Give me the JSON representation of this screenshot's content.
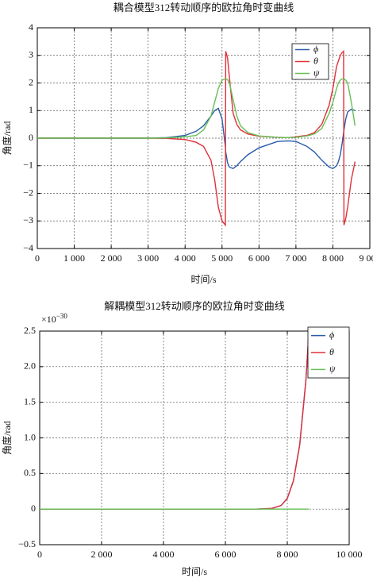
{
  "chart_data": [
    {
      "type": "line",
      "title": "耦合模型312转动顺序的欧拉角时变曲线",
      "x_label": "时间/s",
      "y_label": "角度/rad",
      "x": [
        0,
        1000,
        2000,
        3000,
        3500,
        4000,
        4300,
        4500,
        4700,
        4800,
        4900,
        5000,
        5090,
        5100,
        5150,
        5200,
        5300,
        5400,
        5500,
        5700,
        6000,
        6500,
        6800,
        7000,
        7300,
        7500,
        7700,
        7900,
        8000,
        8100,
        8150,
        8200,
        8250,
        8290,
        8300,
        8350,
        8400,
        8500,
        8600
      ],
      "series": [
        {
          "name": "ϕ",
          "color": "#2a5caa",
          "values": [
            0,
            0,
            0,
            0,
            0.02,
            0.1,
            0.25,
            0.45,
            0.8,
            1.0,
            1.08,
            0.7,
            -0.3,
            -0.5,
            -0.9,
            -1.05,
            -1.1,
            -1.0,
            -0.85,
            -0.6,
            -0.35,
            -0.12,
            -0.1,
            -0.12,
            -0.3,
            -0.5,
            -0.8,
            -1.05,
            -1.1,
            -1.0,
            -0.85,
            -0.6,
            -0.2,
            0.2,
            0.3,
            0.7,
            0.95,
            1.05,
            1.0
          ]
        },
        {
          "name": "θ",
          "color": "#e0303a",
          "values": [
            0,
            0,
            0,
            0,
            -0.01,
            -0.05,
            -0.15,
            -0.3,
            -0.8,
            -1.5,
            -2.5,
            -3.0,
            -3.15,
            3.15,
            2.9,
            2.2,
            0.9,
            0.5,
            0.3,
            0.15,
            0.07,
            0.03,
            0.02,
            0.05,
            0.1,
            0.2,
            0.5,
            1.2,
            1.8,
            2.6,
            2.8,
            3.0,
            3.1,
            3.15,
            -3.15,
            -2.9,
            -2.5,
            -1.5,
            -0.85
          ]
        },
        {
          "name": "ψ",
          "color": "#66c055",
          "values": [
            0,
            0,
            0,
            0,
            0.01,
            0.05,
            0.1,
            0.3,
            0.8,
            1.3,
            1.8,
            2.1,
            2.15,
            2.15,
            2.12,
            2.0,
            1.4,
            0.8,
            0.45,
            0.2,
            0.08,
            0.03,
            0.02,
            0.03,
            0.08,
            0.15,
            0.35,
            0.9,
            1.3,
            1.8,
            2.0,
            2.1,
            2.15,
            2.15,
            2.15,
            2.1,
            2.0,
            1.3,
            0.45
          ]
        }
      ],
      "xlim": [
        0,
        9000
      ],
      "ylim": [
        -4,
        4
      ],
      "xticks": [
        0,
        {
          "value": 1000,
          "label": "1 000"
        },
        {
          "value": 2000,
          "label": "2 000"
        },
        {
          "value": 3000,
          "label": "3 000"
        },
        {
          "value": 4000,
          "label": "4 000"
        },
        {
          "value": 5000,
          "label": "5 000"
        },
        {
          "value": 6000,
          "label": "6 000"
        },
        {
          "value": 7000,
          "label": "7 000"
        },
        {
          "value": 8000,
          "label": "8 000"
        },
        {
          "value": 9000,
          "label": "9 000"
        }
      ],
      "yticks": [
        {
          "value": -4,
          "label": "−4"
        },
        {
          "value": -3,
          "label": "−3"
        },
        {
          "value": -2,
          "label": "−2"
        },
        {
          "value": -1,
          "label": "−1"
        },
        0,
        1,
        2,
        3,
        4
      ],
      "grid": true,
      "legend": "upper right"
    },
    {
      "type": "line",
      "title": "解耦模型312转动顺序的欧拉角时变曲线",
      "x_label": "时间/s",
      "y_label": "角度/rad",
      "y_scale_base": "×10",
      "y_scale_exponent": "−30",
      "x": [
        0,
        2000,
        4000,
        6000,
        7000,
        7500,
        7800,
        8000,
        8200,
        8400,
        8600,
        8700
      ],
      "series": [
        {
          "name": "ϕ",
          "color": "#2a5caa",
          "values": [
            0,
            0,
            0,
            0,
            0,
            0.01,
            0.05,
            0.15,
            0.4,
            0.9,
            1.8,
            2.5
          ]
        },
        {
          "name": "θ",
          "color": "#e0303a",
          "values": [
            0,
            0,
            0,
            0,
            0,
            0.01,
            0.05,
            0.15,
            0.4,
            0.9,
            1.8,
            2.5
          ]
        },
        {
          "name": "ψ",
          "color": "#66c055",
          "values": [
            0,
            0,
            0,
            0,
            0,
            0,
            0,
            0,
            0,
            0,
            0,
            0
          ]
        }
      ],
      "xlim": [
        0,
        10000
      ],
      "ylim": [
        -0.5,
        2.5
      ],
      "xticks": [
        0,
        {
          "value": 2000,
          "label": "2 000"
        },
        {
          "value": 4000,
          "label": "4 000"
        },
        {
          "value": 6000,
          "label": "6 000"
        },
        {
          "value": 8000,
          "label": "8 000"
        },
        {
          "value": 10000,
          "label": "10 000"
        }
      ],
      "yticks": [
        {
          "value": -0.5,
          "label": "−0.5"
        },
        0,
        0.5,
        {
          "value": 1,
          "label": "1.0"
        },
        1.5,
        {
          "value": 2,
          "label": "2.0"
        },
        2.5
      ],
      "grid": true,
      "legend": "upper right"
    }
  ]
}
